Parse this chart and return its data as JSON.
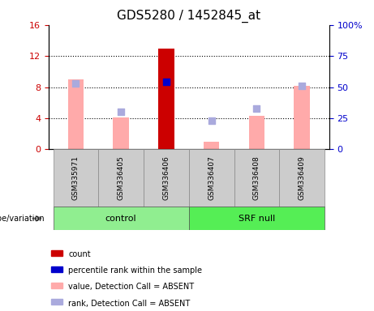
{
  "title": "GDS5280 / 1452845_at",
  "samples": [
    "GSM335971",
    "GSM336405",
    "GSM336406",
    "GSM336407",
    "GSM336408",
    "GSM336409"
  ],
  "ylim_left": [
    0,
    16
  ],
  "ylim_right": [
    0,
    100
  ],
  "yticks_left": [
    0,
    4,
    8,
    12,
    16
  ],
  "yticks_right": [
    0,
    25,
    50,
    75,
    100
  ],
  "ytick_labels_left": [
    "0",
    "4",
    "8",
    "12",
    "16"
  ],
  "ytick_labels_right": [
    "0",
    "25",
    "50",
    "75",
    "100%"
  ],
  "count_values": [
    null,
    null,
    13.0,
    null,
    null,
    null
  ],
  "count_color": "#cc0000",
  "percentile_rank_values": [
    null,
    null,
    8.7,
    null,
    null,
    null
  ],
  "percentile_rank_color": "#0000cc",
  "absent_value_bars": [
    9.0,
    4.1,
    null,
    1.0,
    4.3,
    8.2
  ],
  "absent_value_color": "#ffaaaa",
  "absent_rank_dots": [
    8.5,
    4.8,
    null,
    3.7,
    5.2,
    8.2
  ],
  "absent_rank_color": "#aaaadd",
  "bar_width": 0.35,
  "dot_size": 35,
  "group_control_color": "#90ee90",
  "group_srf_color": "#55ee55",
  "group_label_control": "control",
  "group_label_srf": "SRF null",
  "genotype_label": "genotype/variation",
  "legend_items": [
    {
      "label": "count",
      "color": "#cc0000"
    },
    {
      "label": "percentile rank within the sample",
      "color": "#0000cc"
    },
    {
      "label": "value, Detection Call = ABSENT",
      "color": "#ffaaaa"
    },
    {
      "label": "rank, Detection Call = ABSENT",
      "color": "#aaaadd"
    }
  ],
  "title_fontsize": 11,
  "tick_fontsize": 8,
  "background_plot": "#ffffff",
  "background_sample": "#cccccc",
  "left_axis_color": "#cc0000",
  "right_axis_color": "#0000cc"
}
